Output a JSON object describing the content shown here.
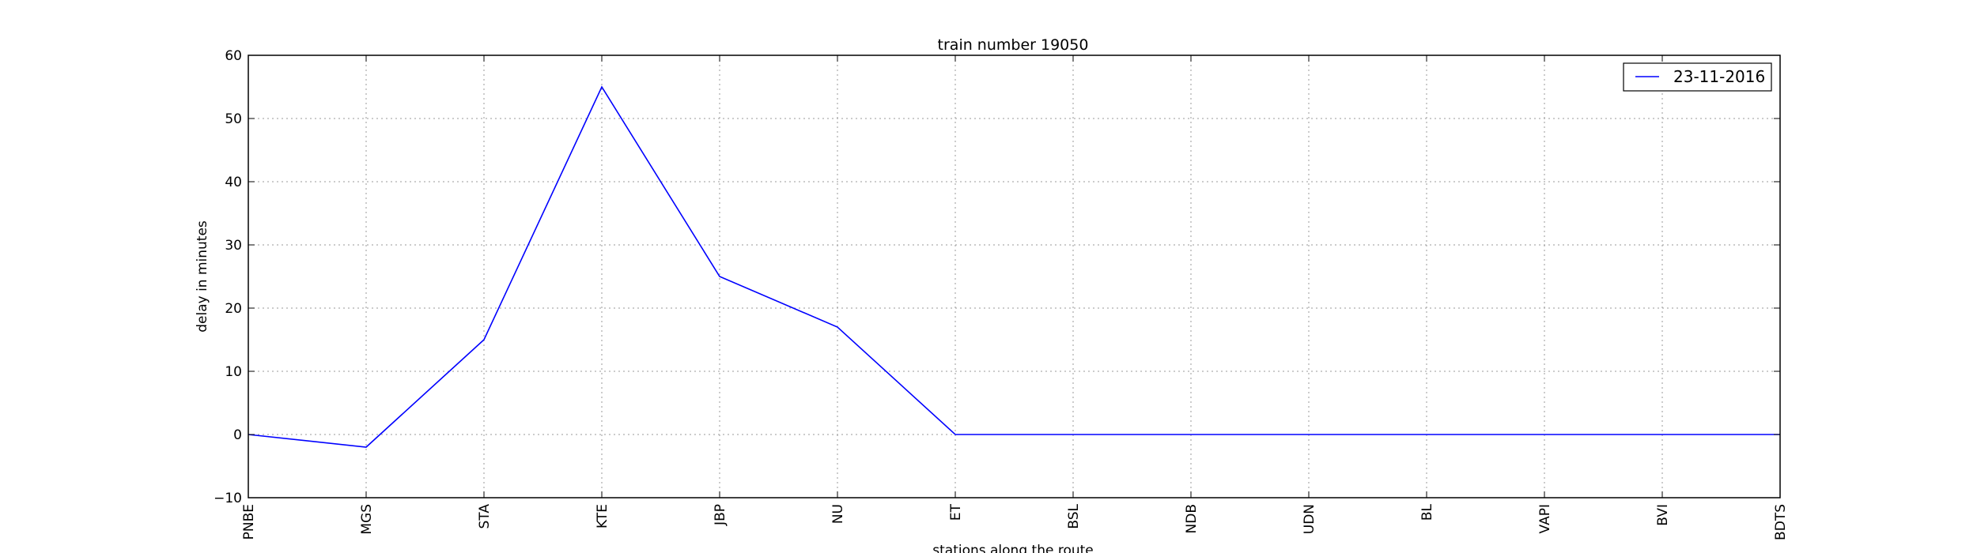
{
  "chart_data": {
    "type": "line",
    "title": "train number 19050",
    "xlabel": "stations along the route",
    "ylabel": "delay in minutes",
    "categories": [
      "PNBE",
      "MGS",
      "STA",
      "KTE",
      "JBP",
      "NU",
      "ET",
      "BSL",
      "NDB",
      "UDN",
      "BL",
      "VAPI",
      "BVI",
      "BDTS"
    ],
    "series": [
      {
        "name": "23-11-2016",
        "values": [
          0,
          -2,
          15,
          55,
          25,
          17,
          0,
          0,
          0,
          0,
          0,
          0,
          0,
          0
        ],
        "color": "#0000ff"
      }
    ],
    "ylim": [
      -10,
      60
    ],
    "yticks": [
      "−10",
      "0",
      "10",
      "20",
      "30",
      "40",
      "50",
      "60"
    ],
    "grid": true,
    "legend_position": "top-right"
  }
}
